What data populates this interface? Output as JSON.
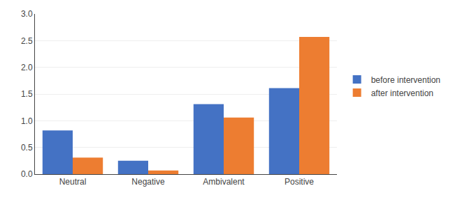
{
  "chart_data": {
    "type": "bar",
    "categories": [
      "Neutral",
      "Negative",
      "Ambivalent",
      "Positive"
    ],
    "series": [
      {
        "name": "before intervention",
        "color": "#4472C4",
        "values": [
          0.82,
          0.25,
          1.31,
          1.61
        ]
      },
      {
        "name": "after intervention",
        "color": "#ED7D31",
        "values": [
          0.31,
          0.07,
          1.06,
          2.57
        ]
      }
    ],
    "ylim": [
      0,
      3
    ],
    "yticks": [
      {
        "value": 0,
        "label": "0.0"
      },
      0.5,
      {
        "value": 1,
        "label": "1.0"
      },
      1.5,
      {
        "value": 2,
        "label": "2.0"
      },
      2.5,
      {
        "value": 3,
        "label": "3.0"
      }
    ],
    "grid": true,
    "legend": "right"
  }
}
